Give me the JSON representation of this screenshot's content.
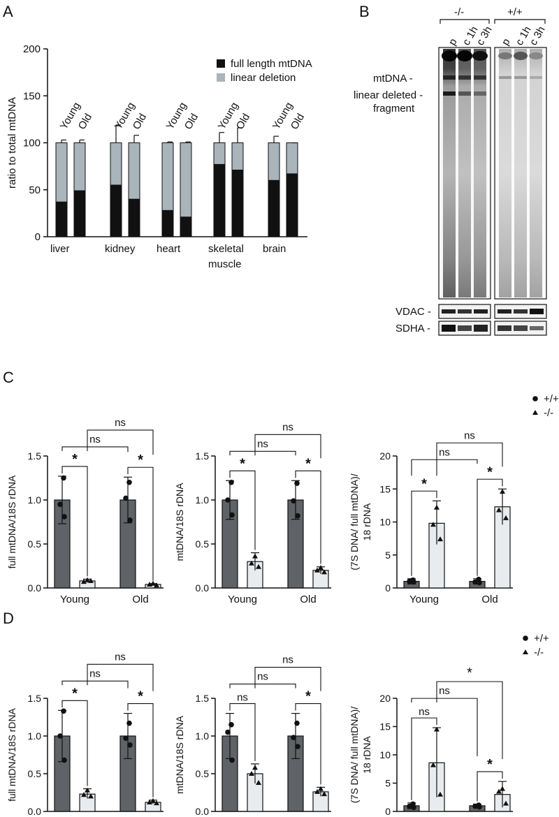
{
  "panel_labels": {
    "A": "A",
    "B": "B",
    "C": "C",
    "D": "D"
  },
  "chart_data": [
    {
      "id": "A",
      "type": "bar",
      "stacked": true,
      "ylabel": "ratio to total mtDNA",
      "ylim": [
        0,
        200
      ],
      "yticks": [
        "0",
        "50",
        "100",
        "150",
        "200"
      ],
      "tissues": [
        {
          "label": "liver",
          "label2": ""
        },
        {
          "label": "kidney",
          "label2": ""
        },
        {
          "label": "heart",
          "label2": ""
        },
        {
          "label": "skeletal",
          "label2": "muscle"
        },
        {
          "label": "brain",
          "label2": ""
        }
      ],
      "age_labels": [
        "Young",
        "Old"
      ],
      "series": [
        {
          "name": "full length mtDNA",
          "color": "#111111",
          "values": [
            37,
            49,
            55,
            40,
            28,
            21,
            77,
            71,
            60,
            67
          ]
        },
        {
          "name": "linear deletion",
          "color": "#a9b4bb",
          "values": [
            63,
            51,
            45,
            60,
            72,
            79,
            23,
            29,
            40,
            33
          ]
        }
      ],
      "error_tops": [
        103,
        103,
        119,
        108,
        101,
        101,
        111,
        116,
        107,
        100
      ],
      "legend_position": "top-right"
    },
    {
      "id": "C1",
      "type": "bar",
      "ylabel": "full mtDNA/18S rDNA",
      "ylim": [
        0,
        1.5
      ],
      "yticks": [
        "0.0",
        "0.5",
        "1.0",
        "1.5"
      ],
      "categories": [
        "Young",
        "Old"
      ],
      "wt_values": [
        1.0,
        1.0
      ],
      "wt_err_up": [
        1.27,
        1.26
      ],
      "wt_err_down": [
        0.73,
        0.74
      ],
      "ko_values": [
        0.08,
        0.04
      ],
      "ko_err_up": [
        0.1,
        0.05
      ],
      "ko_err_down": [
        0.06,
        0.03
      ],
      "wt_points": [
        [
          1.25,
          0.95,
          0.81
        ],
        [
          1.2,
          1.02,
          0.77
        ]
      ],
      "ko_points": [
        [
          0.09,
          0.07,
          0.08
        ],
        [
          0.05,
          0.04,
          0.03
        ]
      ],
      "sig": {
        "young": "*",
        "old": "*",
        "wt_vs_wt": "ns",
        "ko_vs_ko": "ns"
      }
    },
    {
      "id": "C2",
      "type": "bar",
      "ylabel": "mtDNA/18S rDNA",
      "ylim": [
        0,
        1.5
      ],
      "yticks": [
        "0.0",
        "0.5",
        "1.0",
        "1.5"
      ],
      "categories": [
        "Young",
        "Old"
      ],
      "wt_values": [
        1.0,
        1.0
      ],
      "wt_err_up": [
        1.22,
        1.22
      ],
      "wt_err_down": [
        0.78,
        0.78
      ],
      "ko_values": [
        0.3,
        0.2
      ],
      "ko_err_up": [
        0.4,
        0.24
      ],
      "ko_err_down": [
        0.2,
        0.16
      ],
      "wt_points": [
        [
          1.2,
          1.0,
          0.83
        ],
        [
          1.19,
          0.99,
          0.82
        ]
      ],
      "ko_points": [
        [
          0.36,
          0.28,
          0.24
        ],
        [
          0.23,
          0.2,
          0.18
        ]
      ],
      "sig": {
        "young": "*",
        "old": "*",
        "wt_vs_wt": "ns",
        "ko_vs_ko": "ns"
      }
    },
    {
      "id": "C3",
      "type": "bar",
      "ylabel": "(7S DNA/ full mtDNA)/",
      "ylabel2": "18 rDNA",
      "ylim": [
        0,
        20
      ],
      "yticks": [
        "0",
        "5",
        "10",
        "15",
        "20"
      ],
      "categories": [
        "Young",
        "Old"
      ],
      "wt_values": [
        1.0,
        1.0
      ],
      "wt_err_up": [
        1.4,
        1.4
      ],
      "wt_err_down": [
        0.6,
        0.6
      ],
      "ko_values": [
        9.8,
        12.3
      ],
      "ko_err_up": [
        13.2,
        15.0
      ],
      "ko_err_down": [
        6.6,
        9.6
      ],
      "wt_points": [
        [
          1.2,
          1.0,
          0.9
        ],
        [
          1.3,
          0.9,
          0.8
        ]
      ],
      "ko_points": [
        [
          12.2,
          9.6,
          7.4
        ],
        [
          14.6,
          11.8,
          10.6
        ]
      ],
      "sig": {
        "young": "*",
        "old": "*",
        "wt_vs_wt": "ns",
        "ko_vs_ko": "ns"
      }
    },
    {
      "id": "D1",
      "type": "bar",
      "ylabel": "full mtDNA/18S rDNA",
      "ylim": [
        0,
        1.5
      ],
      "yticks": [
        "0.0",
        "0.5",
        "1.0",
        "1.5"
      ],
      "categories": [
        "Young",
        "Old"
      ],
      "wt_values": [
        1.0,
        1.0
      ],
      "wt_err_up": [
        1.34,
        1.3
      ],
      "wt_err_down": [
        0.66,
        0.7
      ],
      "ko_values": [
        0.23,
        0.12
      ],
      "ko_err_up": [
        0.3,
        0.15
      ],
      "ko_err_down": [
        0.17,
        0.1
      ],
      "wt_points": [
        [
          1.33,
          1.0,
          0.68
        ],
        [
          1.17,
          0.97,
          0.88
        ]
      ],
      "ko_points": [
        [
          0.28,
          0.22,
          0.2
        ],
        [
          0.14,
          0.12,
          0.11
        ]
      ],
      "sig": {
        "young": "*",
        "old": "*",
        "wt_vs_wt": "ns",
        "ko_vs_ko": "ns"
      }
    },
    {
      "id": "D2",
      "type": "bar",
      "ylabel": "mtDNA/18S rDNA",
      "ylim": [
        0,
        1.5
      ],
      "yticks": [
        "0.0",
        "0.5",
        "1.0",
        "1.5"
      ],
      "categories": [
        "Young",
        "Old"
      ],
      "wt_values": [
        1.0,
        1.0
      ],
      "wt_err_up": [
        1.3,
        1.3
      ],
      "wt_err_down": [
        0.7,
        0.7
      ],
      "ko_values": [
        0.5,
        0.26
      ],
      "ko_err_up": [
        0.63,
        0.32
      ],
      "ko_err_down": [
        0.37,
        0.2
      ],
      "wt_points": [
        [
          1.15,
          1.05,
          0.68
        ],
        [
          1.17,
          0.98,
          0.86
        ]
      ],
      "ko_points": [
        [
          0.58,
          0.5,
          0.38
        ],
        [
          0.3,
          0.26,
          0.23
        ]
      ],
      "sig": {
        "young": "ns",
        "old": "*",
        "wt_vs_wt": "ns",
        "ko_vs_ko": "ns"
      }
    },
    {
      "id": "D3",
      "type": "bar",
      "ylabel": "(7S DNA/ full mtDNA)/",
      "ylabel2": "18 rDNA",
      "ylim": [
        0,
        20
      ],
      "yticks": [
        "0",
        "5",
        "10",
        "15",
        "20"
      ],
      "categories": [
        "Young",
        "Old"
      ],
      "wt_values": [
        1.0,
        1.0
      ],
      "wt_err_up": [
        1.5,
        1.3
      ],
      "wt_err_down": [
        0.5,
        0.7
      ],
      "ko_values": [
        8.6,
        3.0
      ],
      "ko_err_up": [
        14.8,
        5.3
      ],
      "ko_err_down": [
        2.5,
        0.7
      ],
      "wt_points": [
        [
          1.3,
          0.9,
          0.7
        ],
        [
          1.1,
          0.9,
          0.8
        ]
      ],
      "ko_points": [
        [
          14.5,
          8.2,
          3.0
        ],
        [
          4.0,
          3.5,
          1.4
        ]
      ],
      "sig": {
        "young": "ns",
        "old": "*",
        "wt_vs_wt": "ns",
        "ko_vs_ko": "*"
      }
    }
  ],
  "group_legend": [
    {
      "marker": "circle",
      "label": "+/+"
    },
    {
      "marker": "triangle",
      "label": "-/-"
    }
  ],
  "blot": {
    "genotypes": [
      "-/-",
      "+/+"
    ],
    "lanes": [
      "p",
      "c 1h",
      "c 3h"
    ],
    "band_labels": [
      {
        "line1": "mtDNA -",
        "line2": ""
      },
      {
        "line1": "linear deleted -",
        "line2": "fragment"
      }
    ],
    "loading_controls": [
      "VDAC -",
      "SDHA -"
    ]
  }
}
